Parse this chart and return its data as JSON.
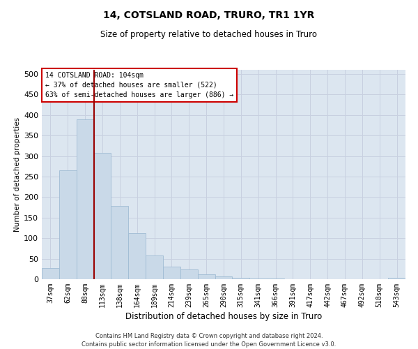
{
  "title": "14, COTSLAND ROAD, TRURO, TR1 1YR",
  "subtitle": "Size of property relative to detached houses in Truro",
  "xlabel": "Distribution of detached houses by size in Truro",
  "ylabel": "Number of detached properties",
  "categories": [
    "37sqm",
    "62sqm",
    "88sqm",
    "113sqm",
    "138sqm",
    "164sqm",
    "189sqm",
    "214sqm",
    "239sqm",
    "265sqm",
    "290sqm",
    "315sqm",
    "341sqm",
    "366sqm",
    "391sqm",
    "417sqm",
    "442sqm",
    "467sqm",
    "492sqm",
    "518sqm",
    "543sqm"
  ],
  "values": [
    27,
    265,
    390,
    308,
    178,
    113,
    57,
    31,
    24,
    12,
    6,
    3,
    1,
    1,
    0,
    0,
    0,
    0,
    0,
    0,
    3
  ],
  "bar_color": "#c9d9e8",
  "bar_edge_color": "#a0bcd4",
  "grid_color": "#c8d0e0",
  "background_color": "#dce6f0",
  "vline_color": "#990000",
  "vline_x_index": 2.5,
  "annotation_text": "14 COTSLAND ROAD: 104sqm\n← 37% of detached houses are smaller (522)\n63% of semi-detached houses are larger (886) →",
  "annotation_box_color": "#ffffff",
  "annotation_box_edge": "#cc0000",
  "footnote": "Contains HM Land Registry data © Crown copyright and database right 2024.\nContains public sector information licensed under the Open Government Licence v3.0.",
  "ylim": [
    0,
    510
  ],
  "yticks": [
    0,
    50,
    100,
    150,
    200,
    250,
    300,
    350,
    400,
    450,
    500
  ],
  "title_fontsize": 10,
  "subtitle_fontsize": 8.5,
  "xlabel_fontsize": 8.5,
  "ylabel_fontsize": 7.5,
  "xtick_fontsize": 7,
  "ytick_fontsize": 8,
  "footnote_fontsize": 6
}
